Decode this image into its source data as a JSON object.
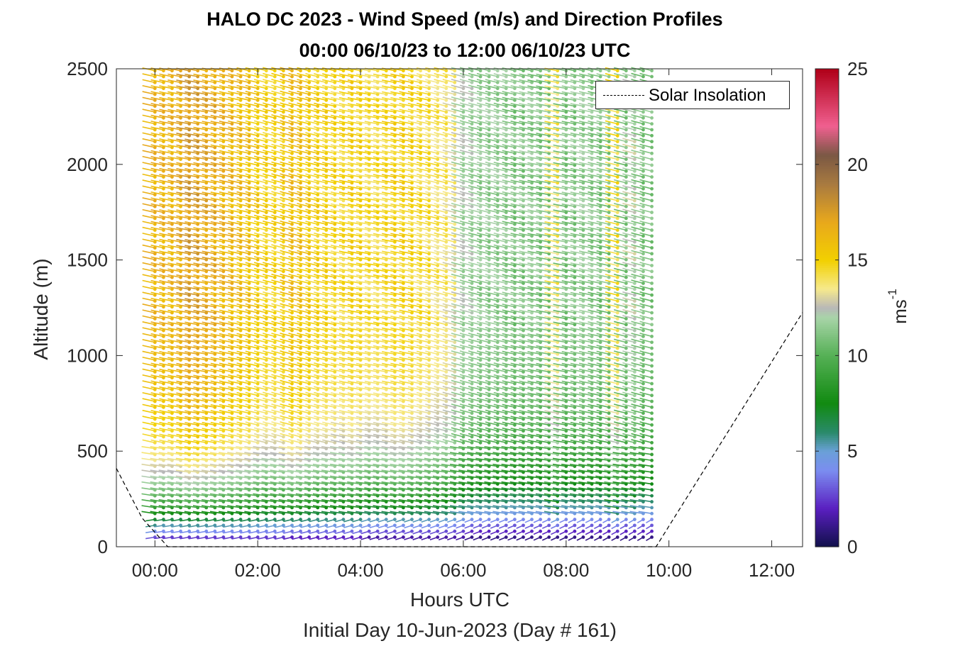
{
  "chart_data": {
    "type": "scatter",
    "title": "HALO DC 2023 - Wind Speed (m/s) and Direction Profiles",
    "subtitle": "00:00 06/10/23 to 12:00 06/10/23  UTC",
    "xlabel": "Hours UTC",
    "sub_xlabel": "Initial Day 10-Jun-2023 (Day # 161)",
    "ylabel": "Altitude (m)",
    "xlim": [
      -0.75,
      12.6
    ],
    "ylim": [
      0,
      2500
    ],
    "x_ticks": [
      0,
      2,
      4,
      6,
      8,
      10,
      12
    ],
    "x_tick_labels": [
      "00:00",
      "02:00",
      "04:00",
      "06:00",
      "08:00",
      "10:00",
      "12:00"
    ],
    "y_ticks": [
      0,
      500,
      1000,
      1500,
      2000,
      2500
    ],
    "y_tick_labels": [
      "0",
      "500",
      "1000",
      "1500",
      "2000",
      "2500"
    ],
    "colorbar": {
      "label": "ms",
      "label_exponent": "-1",
      "range": [
        0,
        25
      ],
      "ticks": [
        0,
        5,
        10,
        15,
        20,
        25
      ],
      "tick_labels": [
        "0",
        "5",
        "10",
        "15",
        "20",
        "25"
      ],
      "stops": [
        {
          "v": 0,
          "c": "#10104a"
        },
        {
          "v": 2,
          "c": "#5a1fc0"
        },
        {
          "v": 4,
          "c": "#7b8df0"
        },
        {
          "v": 5,
          "c": "#6aa0d8"
        },
        {
          "v": 6,
          "c": "#2a8a6a"
        },
        {
          "v": 7.5,
          "c": "#118a11"
        },
        {
          "v": 10,
          "c": "#55b055"
        },
        {
          "v": 12,
          "c": "#a8d4a8"
        },
        {
          "v": 12.5,
          "c": "#b8b8b8"
        },
        {
          "v": 13.5,
          "c": "#f6e98c"
        },
        {
          "v": 15,
          "c": "#f2d000"
        },
        {
          "v": 17,
          "c": "#e8a81c"
        },
        {
          "v": 19,
          "c": "#a87a40"
        },
        {
          "v": 20.5,
          "c": "#7a5844"
        },
        {
          "v": 22,
          "c": "#f06090"
        },
        {
          "v": 25,
          "c": "#b00018"
        }
      ]
    },
    "legend": {
      "entries": [
        "Solar Insolation"
      ],
      "placement": "top-right"
    },
    "profiles": {
      "times_hours": [
        0,
        0.167,
        0.333,
        0.5,
        0.667,
        0.833,
        1,
        1.167,
        1.333,
        1.5,
        1.667,
        1.833,
        2,
        2.167,
        2.333,
        2.5,
        2.667,
        2.833,
        3,
        3.167,
        3.333,
        3.5,
        3.667,
        3.833,
        4,
        4.167,
        4.333,
        4.5,
        4.667,
        4.833,
        5,
        5.167,
        5.333,
        5.5,
        5.667,
        5.833,
        6,
        6.167,
        6.333,
        6.5,
        6.667,
        6.833,
        7,
        7.167,
        7.333,
        7.5,
        7.667,
        7.833,
        8,
        8.167,
        8.333,
        8.5,
        8.667,
        8.833,
        9,
        9.167,
        9.333,
        9.5,
        9.667
      ],
      "altitude_range_m": [
        50,
        2490
      ],
      "speed_at_top_ms": [
        16.5,
        16.5,
        16.5,
        16.5,
        17.5,
        17.5,
        17,
        17,
        16.5,
        16.5,
        16,
        16,
        15.5,
        15,
        15,
        15,
        16,
        16,
        15.5,
        15,
        15,
        15,
        14.5,
        15,
        15,
        14.5,
        14.5,
        14.5,
        15,
        15,
        15,
        14.5,
        14.5,
        14,
        14,
        13.5,
        12,
        12,
        11.5,
        11.5,
        11.5,
        11.5,
        11,
        11,
        11.5,
        11,
        11,
        14,
        11,
        11,
        11.5,
        11.5,
        11,
        11,
        14.5,
        11,
        12.5,
        11,
        11
      ],
      "speed_at_bottom_ms": [
        3,
        2.5,
        2.5,
        2.5,
        2.5,
        2.5,
        2.5,
        2.5,
        2.5,
        2.5,
        2.5,
        2.5,
        2.5,
        2.5,
        2.5,
        2.5,
        2,
        2,
        2,
        2,
        2,
        2,
        2,
        2,
        2,
        1.5,
        1.5,
        1.5,
        1.5,
        1.5,
        1.5,
        1.5,
        1.5,
        1.5,
        1.5,
        1.5,
        1.5,
        1,
        1,
        1,
        1,
        1,
        1,
        1,
        1,
        1,
        1,
        1,
        1,
        1,
        1,
        1,
        1,
        1,
        1,
        1,
        1,
        1,
        1
      ],
      "direction_deg": "southeast-to-northwest flow aloft, veering near surface"
    },
    "solar_insolation": {
      "style": "dashed",
      "color": "#000000",
      "x": [
        -0.75,
        -0.25,
        0.25,
        9.75,
        12.6
      ],
      "y": [
        410,
        150,
        0,
        0,
        1225
      ]
    }
  }
}
